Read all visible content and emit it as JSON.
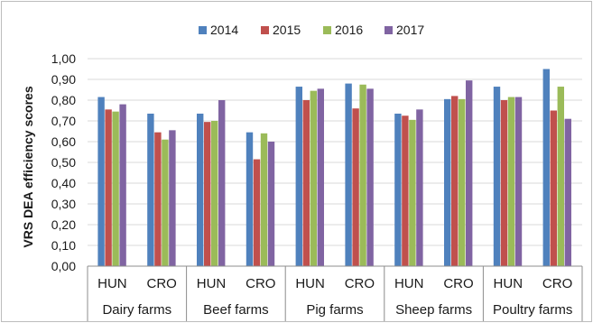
{
  "chart_data": {
    "type": "bar",
    "ylabel": "VRS DEA efficiency scores",
    "ylim": [
      0,
      1.0
    ],
    "ytick_step": 0.1,
    "yticks": [
      "0,00",
      "0,10",
      "0,20",
      "0,30",
      "0,40",
      "0,50",
      "0,60",
      "0,70",
      "0,80",
      "0,90",
      "1,00"
    ],
    "groups": [
      "Dairy farms",
      "Beef farms",
      "Pig farms",
      "Sheep farms",
      "Poultry farms"
    ],
    "subcategories": [
      "HUN",
      "CRO"
    ],
    "categories": [
      "Dairy farms HUN",
      "Dairy farms CRO",
      "Beef farms HUN",
      "Beef farms CRO",
      "Pig farms HUN",
      "Pig farms CRO",
      "Sheep farms HUN",
      "Sheep farms CRO",
      "Poultry farms HUN",
      "Poultry farms CRO"
    ],
    "legend_position": "top",
    "grid": true,
    "series": [
      {
        "name": "2014",
        "color": "#4f81bd",
        "values": [
          0.815,
          0.735,
          0.735,
          0.645,
          0.865,
          0.88,
          0.735,
          0.805,
          0.865,
          0.95
        ]
      },
      {
        "name": "2015",
        "color": "#c0504d",
        "values": [
          0.755,
          0.645,
          0.695,
          0.515,
          0.8,
          0.76,
          0.725,
          0.82,
          0.8,
          0.75
        ]
      },
      {
        "name": "2016",
        "color": "#9bbb59",
        "values": [
          0.745,
          0.61,
          0.7,
          0.64,
          0.845,
          0.875,
          0.705,
          0.805,
          0.815,
          0.865
        ]
      },
      {
        "name": "2017",
        "color": "#8064a2",
        "values": [
          0.78,
          0.655,
          0.8,
          0.6,
          0.855,
          0.855,
          0.755,
          0.895,
          0.815,
          0.71
        ]
      }
    ]
  }
}
